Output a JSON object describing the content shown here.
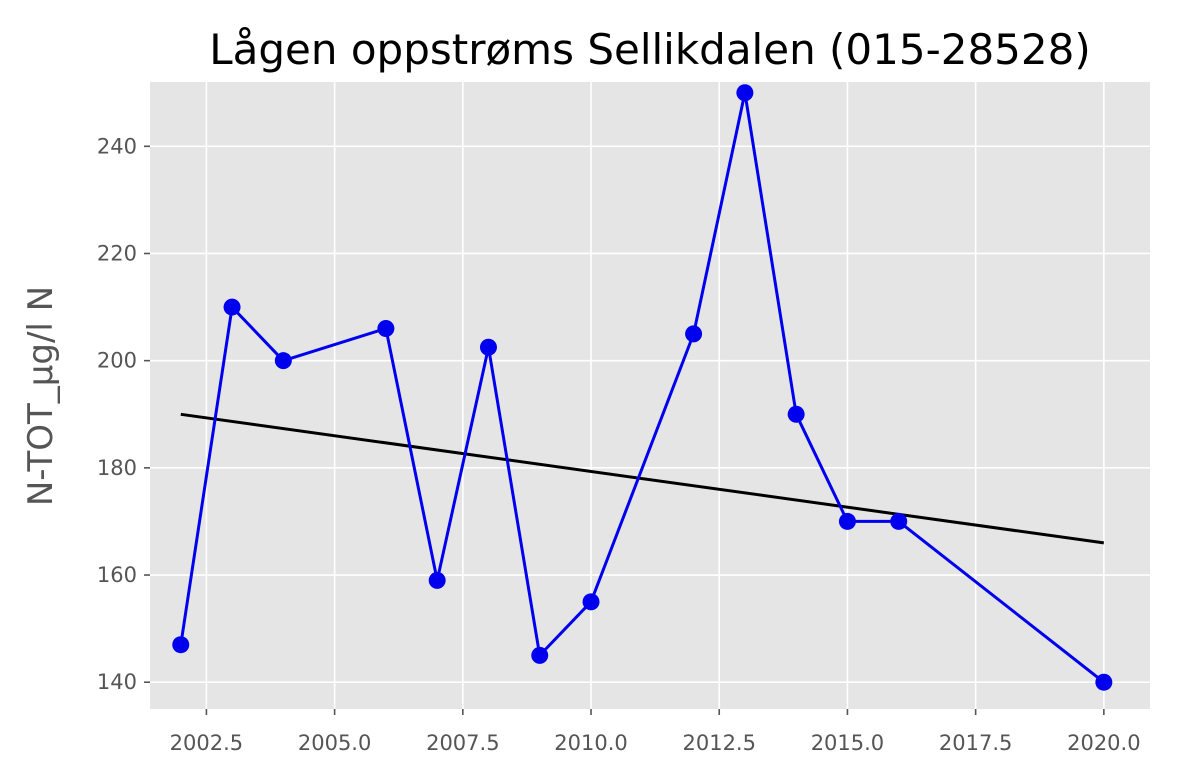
{
  "chart_data": {
    "type": "line",
    "title": "Lågen oppstrøms Sellikdalen (015-28528)",
    "xlabel": "",
    "ylabel": "N-TOT_µg/l N",
    "xlim": [
      2001.4,
      2020.9
    ],
    "ylim": [
      135,
      252
    ],
    "xticks": [
      2002.5,
      2005.0,
      2007.5,
      2010.0,
      2012.5,
      2015.0,
      2017.5,
      2020.0
    ],
    "xtick_labels": [
      "2002.5",
      "2005.0",
      "2007.5",
      "2010.0",
      "2012.5",
      "2015.0",
      "2017.5",
      "2020.0"
    ],
    "yticks": [
      140,
      160,
      180,
      200,
      220,
      240
    ],
    "ytick_labels": [
      "140",
      "160",
      "180",
      "200",
      "220",
      "240"
    ],
    "grid": true,
    "style": "ggplot",
    "series": [
      {
        "color": "#0000ee",
        "marker": "circle",
        "x": [
          2002,
          2003,
          2004,
          2006,
          2007,
          2008,
          2009,
          2010,
          2012,
          2013,
          2014,
          2015,
          2016,
          2020
        ],
        "y": [
          147,
          210,
          200,
          206,
          159,
          202.5,
          145,
          155,
          205,
          250,
          190,
          170,
          170,
          140
        ]
      },
      {
        "color": "#000000",
        "marker": "none",
        "x": [
          2002,
          2020
        ],
        "y": [
          190,
          166
        ]
      }
    ]
  }
}
